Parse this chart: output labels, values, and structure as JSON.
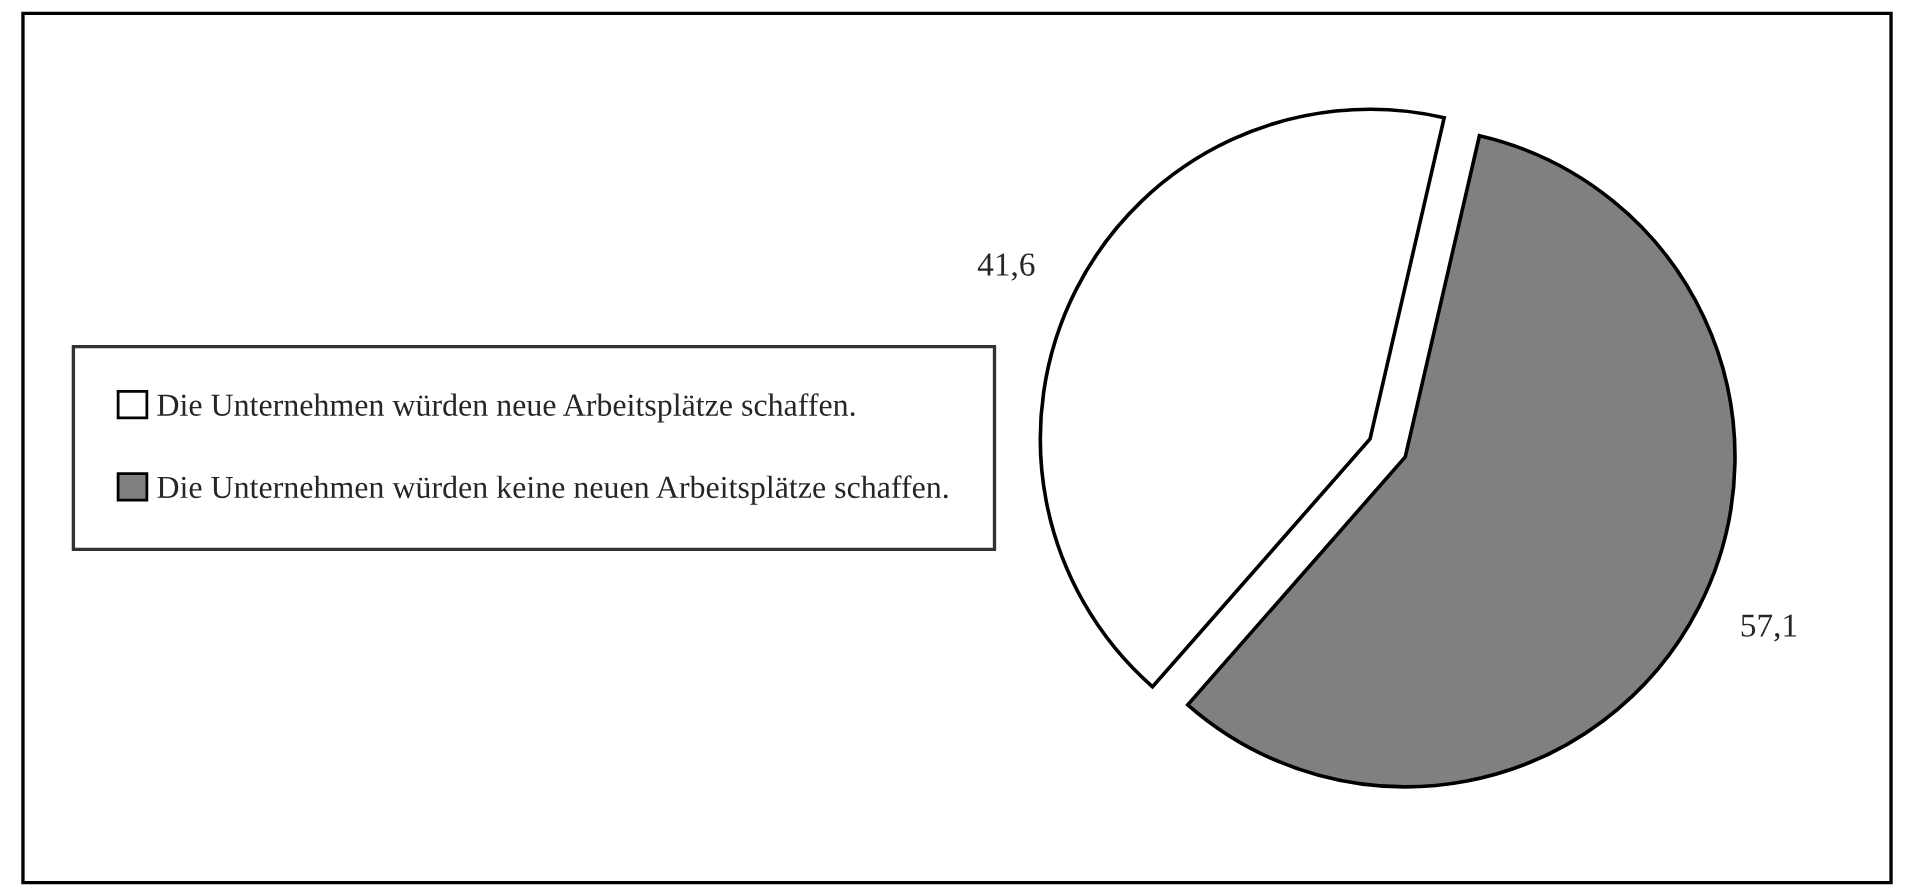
{
  "chart_data": {
    "type": "pie",
    "categories": [
      "Die Unternehmen würden neue Arbeitsplätze schaffen.",
      "Die Unternehmen würden keine neuen Arbeitsplätze schaffen."
    ],
    "values": [
      41.6,
      57.1
    ],
    "colors": [
      "#ffffff",
      "#808080"
    ],
    "value_labels": [
      "41,6",
      "57,1"
    ],
    "legend": "left"
  }
}
